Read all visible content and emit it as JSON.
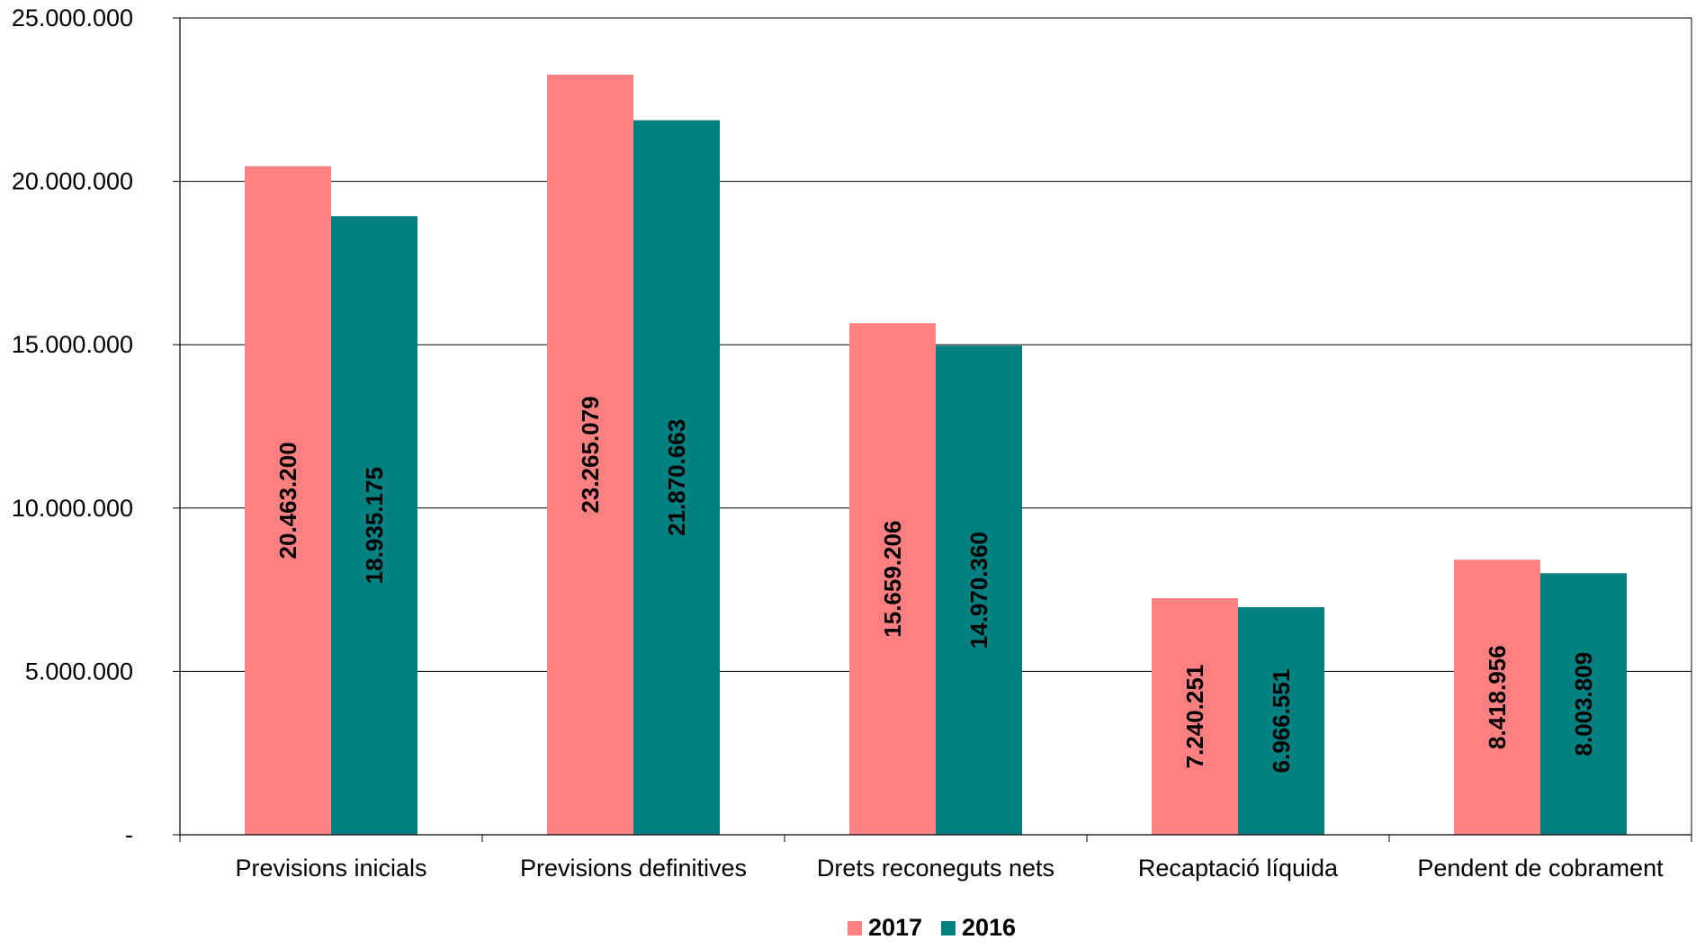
{
  "chart_data": {
    "type": "bar",
    "title": "",
    "xlabel": "",
    "ylabel": "",
    "categories": [
      "Previsions inicials",
      "Previsions definitives",
      "Drets reconeguts nets",
      "Recaptació líquida",
      "Pendent de cobrament"
    ],
    "series": [
      {
        "name": "2017",
        "color": "#FF8080",
        "values": [
          20463200,
          23265079,
          15659206,
          7240251,
          8418956
        ],
        "labels": [
          "20.463.200",
          "23.265.079",
          "15.659.206",
          "7.240.251",
          "8.418.956"
        ]
      },
      {
        "name": "2016",
        "color": "#008080",
        "values": [
          18935175,
          21870663,
          14970360,
          6966551,
          8003809
        ],
        "labels": [
          "18.935.175",
          "21.870.663",
          "14.970.360",
          "6.966.551",
          "8.003.809"
        ]
      }
    ],
    "ylim": [
      0,
      25000000
    ],
    "yticks": [
      {
        "value": 0,
        "label": "-"
      },
      {
        "value": 5000000,
        "label": "5.000.000"
      },
      {
        "value": 10000000,
        "label": "10.000.000"
      },
      {
        "value": 15000000,
        "label": "15.000.000"
      },
      {
        "value": 20000000,
        "label": "20.000.000"
      },
      {
        "value": 25000000,
        "label": "25.000.000"
      }
    ],
    "grid": true,
    "legend": "bottom-center",
    "data_labels": "vertical-inside"
  }
}
